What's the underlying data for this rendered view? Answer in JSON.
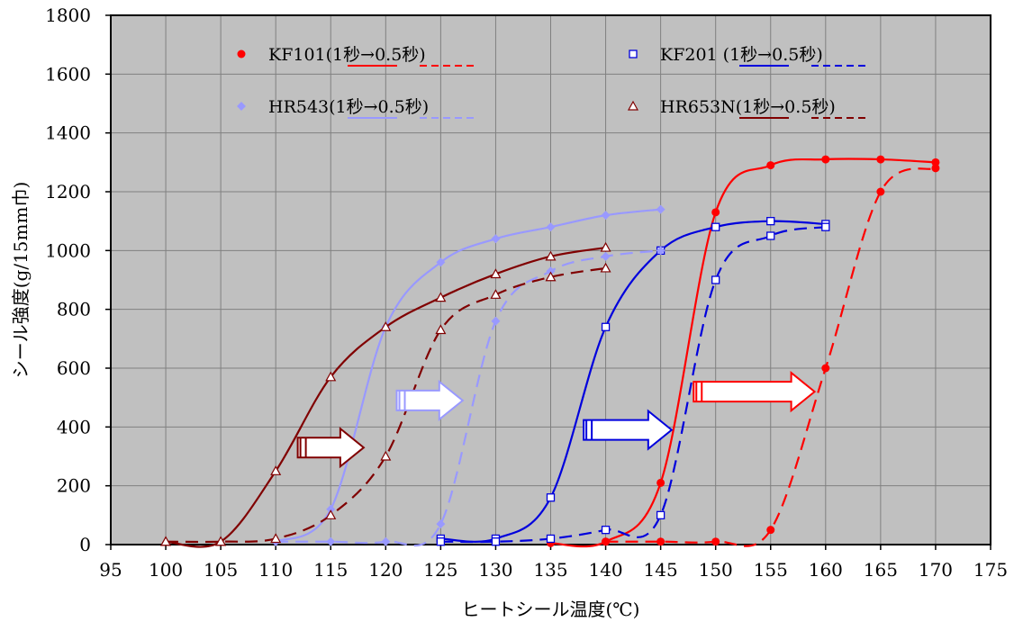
{
  "chart_data": {
    "type": "line",
    "title": "",
    "xlabel": "ヒートシール温度(℃)",
    "ylabel": "シール強度(g/15mm巾)",
    "xlim": [
      95,
      175
    ],
    "ylim": [
      0,
      1800
    ],
    "x_ticks": [
      95,
      100,
      105,
      110,
      115,
      120,
      125,
      130,
      135,
      140,
      145,
      150,
      155,
      160,
      165,
      170,
      175
    ],
    "y_ticks": [
      0,
      200,
      400,
      600,
      800,
      1000,
      1200,
      1400,
      1600,
      1800
    ],
    "grid": true,
    "legend_position": "top",
    "series": [
      {
        "name": "KF101(1秒→0.5秒)",
        "condition": "1秒",
        "color": "#ff0000",
        "marker": "circle",
        "dash": "solid",
        "points": [
          [
            135,
            5
          ],
          [
            140,
            10
          ],
          [
            145,
            210
          ],
          [
            150,
            1130
          ],
          [
            155,
            1290
          ],
          [
            160,
            1310
          ],
          [
            165,
            1310
          ],
          [
            170,
            1300
          ]
        ]
      },
      {
        "name": "KF101(1秒→0.5秒)",
        "condition": "0.5秒",
        "color": "#ff0000",
        "marker": "circle",
        "dash": "dashed",
        "points": [
          [
            140,
            10
          ],
          [
            145,
            10
          ],
          [
            150,
            10
          ],
          [
            155,
            50
          ],
          [
            160,
            600
          ],
          [
            165,
            1200
          ],
          [
            170,
            1280
          ]
        ]
      },
      {
        "name": "KF201 (1秒→0.5秒)",
        "condition": "1秒",
        "color": "#0000dd",
        "marker": "square",
        "dash": "solid",
        "points": [
          [
            125,
            20
          ],
          [
            130,
            20
          ],
          [
            135,
            160
          ],
          [
            140,
            740
          ],
          [
            145,
            1000
          ],
          [
            150,
            1080
          ],
          [
            155,
            1100
          ],
          [
            160,
            1090
          ]
        ]
      },
      {
        "name": "KF201 (1秒→0.5秒)",
        "condition": "0.5秒",
        "color": "#0000dd",
        "marker": "square",
        "dash": "dashed",
        "points": [
          [
            125,
            10
          ],
          [
            130,
            10
          ],
          [
            135,
            20
          ],
          [
            140,
            50
          ],
          [
            145,
            100
          ],
          [
            150,
            900
          ],
          [
            155,
            1050
          ],
          [
            160,
            1080
          ]
        ]
      },
      {
        "name": "HR543(1秒→0.5秒)",
        "condition": "1秒",
        "color": "#9999ff",
        "marker": "diamond",
        "dash": "solid",
        "points": [
          [
            110,
            10
          ],
          [
            115,
            120
          ],
          [
            120,
            740
          ],
          [
            125,
            960
          ],
          [
            130,
            1040
          ],
          [
            135,
            1080
          ],
          [
            140,
            1120
          ],
          [
            145,
            1140
          ]
        ]
      },
      {
        "name": "HR543(1秒→0.5秒)",
        "condition": "0.5秒",
        "color": "#9999ff",
        "marker": "diamond",
        "dash": "dashed",
        "points": [
          [
            110,
            10
          ],
          [
            115,
            10
          ],
          [
            120,
            10
          ],
          [
            125,
            70
          ],
          [
            130,
            760
          ],
          [
            135,
            930
          ],
          [
            140,
            980
          ],
          [
            145,
            1000
          ]
        ]
      },
      {
        "name": "HR653N(1秒→0.5秒)",
        "condition": "1秒",
        "color": "#800000",
        "marker": "triangle",
        "dash": "solid",
        "points": [
          [
            100,
            10
          ],
          [
            105,
            10
          ],
          [
            110,
            250
          ],
          [
            115,
            570
          ],
          [
            120,
            740
          ],
          [
            125,
            840
          ],
          [
            130,
            920
          ],
          [
            135,
            980
          ],
          [
            140,
            1010
          ]
        ]
      },
      {
        "name": "HR653N(1秒→0.5秒)",
        "condition": "0.5秒",
        "color": "#800000",
        "marker": "triangle",
        "dash": "dashed",
        "points": [
          [
            100,
            10
          ],
          [
            105,
            10
          ],
          [
            110,
            20
          ],
          [
            115,
            100
          ],
          [
            120,
            300
          ],
          [
            125,
            730
          ],
          [
            130,
            850
          ],
          [
            135,
            910
          ],
          [
            140,
            940
          ]
        ]
      }
    ],
    "legend": [
      {
        "label": "KF101(1秒→0.5秒)",
        "color": "#ff0000",
        "marker": "circle"
      },
      {
        "label": "KF201 (1秒→0.5秒)",
        "color": "#0000dd",
        "marker": "square"
      },
      {
        "label": "HR543(1秒→0.5秒)",
        "color": "#9999ff",
        "marker": "diamond"
      },
      {
        "label": "HR653N(1秒→0.5秒)",
        "color": "#800000",
        "marker": "triangle"
      }
    ],
    "annotations": [
      {
        "type": "arrow",
        "color": "#800000",
        "at": [
          112,
          330
        ],
        "to": [
          118,
          330
        ]
      },
      {
        "type": "arrow",
        "color": "#9999ff",
        "at": [
          121,
          490
        ],
        "to": [
          127,
          490
        ]
      },
      {
        "type": "arrow",
        "color": "#0000dd",
        "at": [
          138,
          390
        ],
        "to": [
          146,
          390
        ]
      },
      {
        "type": "arrow",
        "color": "#ff0000",
        "at": [
          148,
          520
        ],
        "to": [
          159,
          520
        ]
      }
    ],
    "colors": {
      "plot_background": "#c0c0c0",
      "grid": "#808080"
    }
  }
}
